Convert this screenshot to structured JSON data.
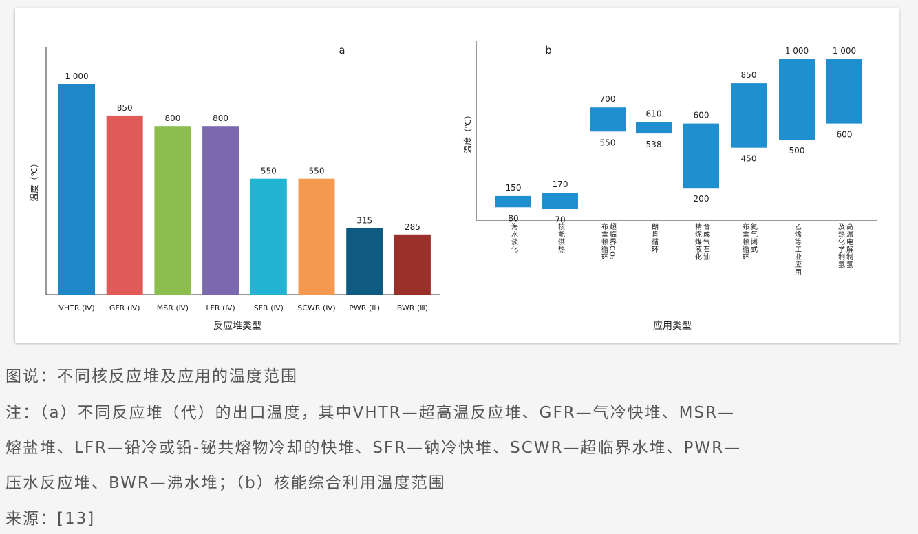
{
  "chart_data": [
    {
      "type": "bar",
      "title": "a",
      "ylabel": "温度（℃）",
      "xlabel": "反应堆类型",
      "categories": [
        "VHTR (Ⅳ)",
        "GFR (Ⅳ)",
        "MSR (Ⅳ)",
        "LFR (Ⅳ)",
        "SFR (Ⅳ)",
        "SCWR (Ⅳ)",
        "PWR (Ⅲ)",
        "BWR (Ⅲ)"
      ],
      "values": [
        1000,
        850,
        800,
        800,
        550,
        550,
        315,
        285
      ],
      "value_labels": [
        "1 000",
        "850",
        "800",
        "800",
        "550",
        "550",
        "315",
        "285"
      ],
      "colors": [
        "#1f86c7",
        "#e15a5a",
        "#8bbd4f",
        "#7b69ad",
        "#22b5d3",
        "#f39a50",
        "#0e5a80",
        "#9b302a"
      ],
      "ylim": [
        0,
        1000
      ]
    },
    {
      "type": "bar",
      "subtype": "floating-range",
      "title": "b",
      "ylabel": "温度（℃）",
      "xlabel": "应用类型",
      "categories": [
        "海水淡化",
        "核能供热",
        "超临界CO₂布雷顿循环",
        "朗肯循环",
        "合成气石油精炼煤液化",
        "氦气闭式布雷顿循环",
        "乙烯等工业应用",
        "高温电解制氢及热化学制氢"
      ],
      "category_lines": [
        [
          "海水淡化"
        ],
        [
          "核能供热"
        ],
        [
          "超临界CO₂",
          "布雷顿循环"
        ],
        [
          "朗肯循环"
        ],
        [
          "合成气石油",
          "精炼煤液化"
        ],
        [
          "氦气闭式",
          "布雷顿循环"
        ],
        [
          "乙烯等工业应用"
        ],
        [
          "高温电解制氢",
          "及热化学制氢"
        ]
      ],
      "low": [
        80,
        70,
        550,
        538,
        200,
        450,
        500,
        600
      ],
      "high": [
        150,
        170,
        700,
        610,
        600,
        850,
        1000,
        1000
      ],
      "low_labels": [
        "80",
        "70",
        "550",
        "538",
        "200",
        "450",
        "500",
        "600"
      ],
      "high_labels": [
        "150",
        "170",
        "700",
        "610",
        "600",
        "850",
        "1 000",
        "1 000"
      ],
      "color": "#1f8fcf",
      "ylim": [
        0,
        1000
      ]
    }
  ],
  "captions": {
    "figure": "图说：不同核反应堆及应用的温度范围",
    "note_line1": "注：（a）不同反应堆（代）的出口温度，其中VHTR—超高温反应堆、GFR—气冷快堆、MSR—",
    "note_line2": "熔盐堆、LFR—铅冷或铅-铋共熔物冷却的快堆、SFR—钠冷快堆、SCWR—超临界水堆、PWR—",
    "note_line3": "压水反应堆、BWR—沸水堆；（b）核能综合利用温度范围",
    "source": "来源：[13]"
  }
}
